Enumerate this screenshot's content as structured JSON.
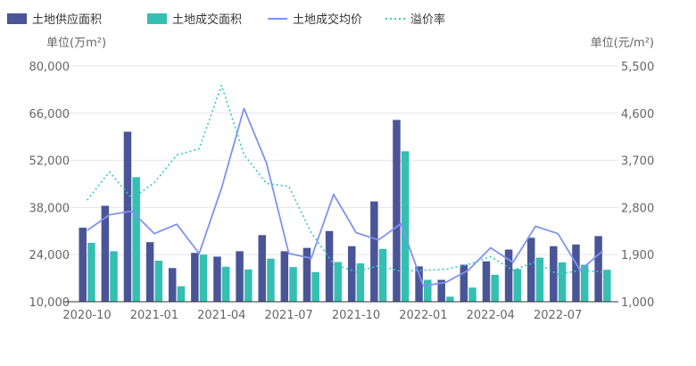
{
  "chart_data": {
    "type": "bar",
    "legend": {
      "placement": "top-left",
      "items": [
        {
          "label": "土地供应面积",
          "kind": "bar",
          "color": "#4a5598"
        },
        {
          "label": "土地成交面积",
          "kind": "bar",
          "color": "#35bfb1"
        },
        {
          "label": "土地成交均价",
          "kind": "line",
          "color": "#7f93f2"
        },
        {
          "label": "溢价率",
          "kind": "dotted-line",
          "color": "#35c9be"
        }
      ]
    },
    "y_left": {
      "label": "单位(万m²)",
      "ticks": [
        "80,000",
        "66,000",
        "52,000",
        "38,000",
        "24,000",
        "10,000"
      ],
      "range": [
        10000,
        80000
      ]
    },
    "y_right": {
      "label": "单位(元/m²)",
      "ticks": [
        "5,500",
        "4,600",
        "3,700",
        "2,800",
        "1,900",
        "1,000"
      ],
      "range": [
        1000,
        5500
      ]
    },
    "x_tick_labels": [
      "2020-10",
      "2021-01",
      "2021-04",
      "2021-07",
      "2021-10",
      "2022-01",
      "2022-04",
      "2022-07"
    ],
    "categories": [
      "2020-10",
      "2020-11",
      "2020-12",
      "2021-01",
      "2021-02",
      "2021-03",
      "2021-04",
      "2021-05",
      "2021-06",
      "2021-07",
      "2021-08",
      "2021-09",
      "2021-10",
      "2021-11",
      "2021-12",
      "2022-01",
      "2022-02",
      "2022-03",
      "2022-04",
      "2022-05",
      "2022-06",
      "2022-07",
      "2022-08",
      "2022-09"
    ],
    "grid": true,
    "series": [
      {
        "name": "土地供应面积",
        "type": "bar",
        "axis": "left",
        "color": "#4a5598",
        "values": [
          32000,
          38500,
          60500,
          27700,
          20000,
          24500,
          23400,
          25000,
          29800,
          25000,
          26000,
          31000,
          26500,
          39800,
          64000,
          20500,
          16500,
          21000,
          22000,
          25500,
          29000,
          26500,
          27000,
          29500
        ]
      },
      {
        "name": "土地成交面积",
        "type": "bar",
        "axis": "left",
        "color": "#35bfb1",
        "values": [
          27500,
          25000,
          47000,
          22200,
          14600,
          24000,
          20400,
          19600,
          22800,
          20300,
          18800,
          21800,
          21400,
          25700,
          54700,
          16500,
          11500,
          14200,
          18000,
          19700,
          23100,
          21700,
          21000,
          19500
        ]
      },
      {
        "name": "土地成交均价",
        "type": "line",
        "axis": "right",
        "color": "#7f93f2",
        "values": [
          2360,
          2660,
          2730,
          2300,
          2480,
          1920,
          3170,
          4690,
          3650,
          1920,
          1830,
          3050,
          2320,
          2180,
          2490,
          1300,
          1370,
          1600,
          2030,
          1750,
          2440,
          2300,
          1600,
          1970
        ]
      },
      {
        "name": "溢价率",
        "type": "dotted-line",
        "axis": "right",
        "color": "#35c9be",
        "values": [
          2940,
          3480,
          2970,
          3270,
          3800,
          3920,
          5130,
          3810,
          3260,
          3200,
          2320,
          1720,
          1570,
          1690,
          1580,
          1600,
          1620,
          1710,
          1860,
          1600,
          1760,
          1520,
          1600,
          1570
        ]
      }
    ]
  }
}
